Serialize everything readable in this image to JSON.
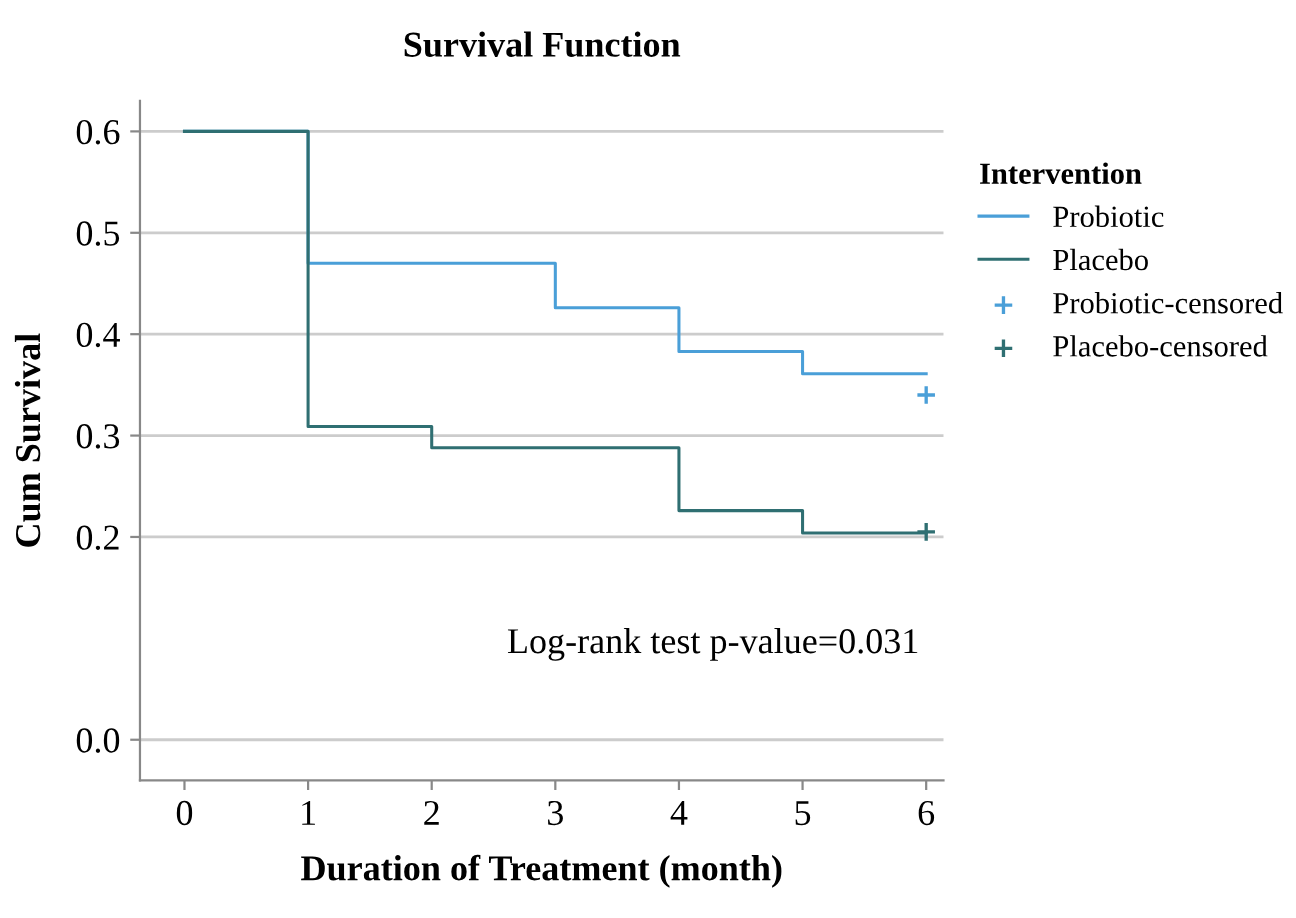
{
  "chart_data": {
    "type": "step",
    "title": "Survival Function",
    "xlabel": "Duration of Treatment (month)",
    "ylabel": "Cum Survival",
    "legend_title": "Intervention",
    "series": [
      {
        "name": "Probiotic",
        "color": "#4a9fd8",
        "x": [
          0,
          1,
          3,
          4,
          5,
          6
        ],
        "values": [
          0.6,
          0.47,
          0.426,
          0.383,
          0.361,
          0.361
        ]
      },
      {
        "name": "Placebo",
        "color": "#2f6f72",
        "x": [
          0,
          1,
          2,
          4,
          5,
          6
        ],
        "values": [
          0.6,
          0.309,
          0.288,
          0.226,
          0.204,
          0.204
        ]
      },
      {
        "name": "Probiotic-censored",
        "type": "scatter",
        "marker": "cross",
        "color": "#4a9fd8",
        "x": [
          6
        ],
        "values": [
          0.34
        ]
      },
      {
        "name": "Placebo-censored",
        "type": "scatter",
        "marker": "cross",
        "color": "#2f6f72",
        "x": [
          6
        ],
        "values": [
          0.205
        ]
      }
    ],
    "xlim": [
      -0.36,
      6.14
    ],
    "xticks": [
      0,
      1,
      2,
      3,
      4,
      5,
      6
    ],
    "ylim": [
      -0.04,
      0.63
    ],
    "yticks": [
      {
        "value": 0,
        "label": "0.0"
      },
      0.2,
      0.3,
      0.4,
      0.5,
      0.6
    ],
    "grid": "y",
    "legend": "top right",
    "annotations": [
      "Log-rank test p-value=0.031"
    ]
  }
}
